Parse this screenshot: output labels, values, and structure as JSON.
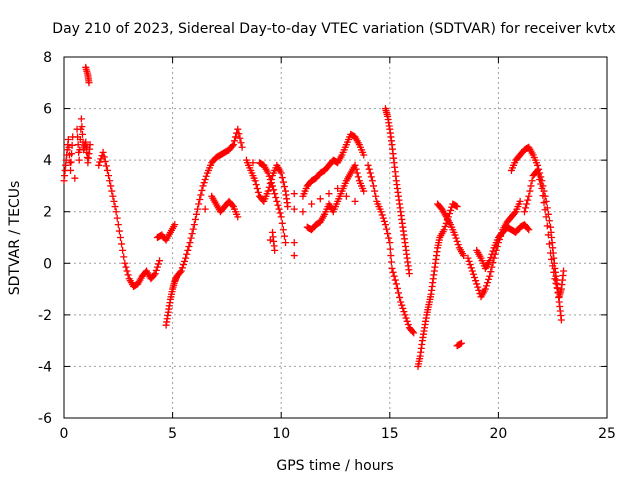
{
  "chart_data": {
    "type": "scatter",
    "title": "Day 210 of 2023, Sidereal Day-to-day VTEC variation (SDTVAR) for receiver kvtx",
    "xlabel": "GPS time / hours",
    "ylabel": "SDTVAR / TECUs",
    "xlim": [
      0,
      25
    ],
    "ylim": [
      -6,
      8
    ],
    "xticks": [
      0,
      5,
      10,
      15,
      20,
      25
    ],
    "yticks": [
      -6,
      -4,
      -2,
      0,
      2,
      4,
      6,
      8
    ],
    "grid": true,
    "marker": "+",
    "color": "#ff0000",
    "series": [
      {
        "name": "kvtx",
        "points": [
          [
            0.0,
            3.2
          ],
          [
            0.1,
            4.0
          ],
          [
            0.2,
            4.8
          ],
          [
            0.3,
            3.6
          ],
          [
            0.4,
            4.9
          ],
          [
            0.5,
            3.3
          ],
          [
            0.6,
            5.2
          ],
          [
            0.7,
            4.0
          ],
          [
            0.8,
            5.6
          ],
          [
            0.9,
            4.4
          ],
          [
            1.0,
            4.7
          ],
          [
            1.1,
            3.9
          ],
          [
            1.2,
            4.6
          ],
          [
            1.0,
            7.6
          ],
          [
            1.1,
            7.3
          ],
          [
            1.15,
            7.0
          ],
          [
            1.6,
            3.8
          ],
          [
            1.8,
            4.3
          ],
          [
            2.0,
            3.6
          ],
          [
            2.2,
            2.8
          ],
          [
            2.4,
            2.0
          ],
          [
            2.6,
            1.0
          ],
          [
            2.8,
            0.0
          ],
          [
            3.0,
            -0.6
          ],
          [
            3.2,
            -0.9
          ],
          [
            3.4,
            -0.8
          ],
          [
            3.6,
            -0.5
          ],
          [
            3.8,
            -0.3
          ],
          [
            4.0,
            -0.6
          ],
          [
            4.2,
            -0.4
          ],
          [
            4.4,
            0.1
          ],
          [
            4.3,
            1.0
          ],
          [
            4.5,
            1.1
          ],
          [
            4.7,
            0.9
          ],
          [
            4.9,
            1.2
          ],
          [
            5.1,
            1.5
          ],
          [
            4.7,
            -2.4
          ],
          [
            4.8,
            -1.9
          ],
          [
            4.9,
            -1.4
          ],
          [
            5.0,
            -1.0
          ],
          [
            5.1,
            -0.7
          ],
          [
            5.2,
            -0.5
          ],
          [
            5.4,
            -0.3
          ],
          [
            5.6,
            0.2
          ],
          [
            5.8,
            0.8
          ],
          [
            6.0,
            1.5
          ],
          [
            6.2,
            2.3
          ],
          [
            6.4,
            3.0
          ],
          [
            6.6,
            3.5
          ],
          [
            6.8,
            3.9
          ],
          [
            7.0,
            4.1
          ],
          [
            7.2,
            4.2
          ],
          [
            7.4,
            4.3
          ],
          [
            7.6,
            4.4
          ],
          [
            7.8,
            4.6
          ],
          [
            8.0,
            5.2
          ],
          [
            8.2,
            4.5
          ],
          [
            6.5,
            2.1
          ],
          [
            6.8,
            2.6
          ],
          [
            7.0,
            2.3
          ],
          [
            7.2,
            2.0
          ],
          [
            7.4,
            2.2
          ],
          [
            7.6,
            2.4
          ],
          [
            7.8,
            2.2
          ],
          [
            8.0,
            1.8
          ],
          [
            8.4,
            4.0
          ],
          [
            8.6,
            3.6
          ],
          [
            8.8,
            3.2
          ],
          [
            9.0,
            2.6
          ],
          [
            9.2,
            2.4
          ],
          [
            9.4,
            2.8
          ],
          [
            9.6,
            3.4
          ],
          [
            9.8,
            3.8
          ],
          [
            10.0,
            3.5
          ],
          [
            10.2,
            2.8
          ],
          [
            10.3,
            2.2
          ],
          [
            8.7,
            3.9
          ],
          [
            9.0,
            3.9
          ],
          [
            9.2,
            3.8
          ],
          [
            9.4,
            3.5
          ],
          [
            9.6,
            3.0
          ],
          [
            9.8,
            2.4
          ],
          [
            10.0,
            1.8
          ],
          [
            10.2,
            0.8
          ],
          [
            9.6,
            1.2
          ],
          [
            9.7,
            0.5
          ],
          [
            9.5,
            0.9
          ],
          [
            10.6,
            2.7
          ],
          [
            10.6,
            2.1
          ],
          [
            10.6,
            0.8
          ],
          [
            10.6,
            0.3
          ],
          [
            11.0,
            2.6
          ],
          [
            11.2,
            3.0
          ],
          [
            11.4,
            3.2
          ],
          [
            11.6,
            3.3
          ],
          [
            11.8,
            3.5
          ],
          [
            12.0,
            3.6
          ],
          [
            12.2,
            3.8
          ],
          [
            12.4,
            4.0
          ],
          [
            12.6,
            3.9
          ],
          [
            12.8,
            4.2
          ],
          [
            13.0,
            4.6
          ],
          [
            13.2,
            5.0
          ],
          [
            13.4,
            4.9
          ],
          [
            13.6,
            4.6
          ],
          [
            13.8,
            4.2
          ],
          [
            11.2,
            1.4
          ],
          [
            11.4,
            1.3
          ],
          [
            11.6,
            1.5
          ],
          [
            11.8,
            1.6
          ],
          [
            12.0,
            1.9
          ],
          [
            12.2,
            2.3
          ],
          [
            12.4,
            2.0
          ],
          [
            12.6,
            2.4
          ],
          [
            12.8,
            2.8
          ],
          [
            13.0,
            3.2
          ],
          [
            13.2,
            3.5
          ],
          [
            13.4,
            3.8
          ],
          [
            13.6,
            3.2
          ],
          [
            13.8,
            2.8
          ],
          [
            11.0,
            2.0
          ],
          [
            11.4,
            2.3
          ],
          [
            11.8,
            2.5
          ],
          [
            12.2,
            2.7
          ],
          [
            12.6,
            2.9
          ],
          [
            13.0,
            2.6
          ],
          [
            13.4,
            2.4
          ],
          [
            14.0,
            3.8
          ],
          [
            14.2,
            3.2
          ],
          [
            14.4,
            2.4
          ],
          [
            14.6,
            2.0
          ],
          [
            14.8,
            1.5
          ],
          [
            15.0,
            0.8
          ],
          [
            15.1,
            -0.2
          ],
          [
            15.3,
            -0.8
          ],
          [
            15.5,
            -1.5
          ],
          [
            15.7,
            -2.0
          ],
          [
            15.9,
            -2.5
          ],
          [
            16.1,
            -2.7
          ],
          [
            14.8,
            6.0
          ],
          [
            14.9,
            5.7
          ],
          [
            15.0,
            5.2
          ],
          [
            15.1,
            4.6
          ],
          [
            15.2,
            3.9
          ],
          [
            15.3,
            3.2
          ],
          [
            15.4,
            2.6
          ],
          [
            15.5,
            2.0
          ],
          [
            15.6,
            1.4
          ],
          [
            15.7,
            0.8
          ],
          [
            15.8,
            0.2
          ],
          [
            15.9,
            -0.4
          ],
          [
            16.3,
            -4.0
          ],
          [
            16.4,
            -3.6
          ],
          [
            16.5,
            -3.0
          ],
          [
            16.6,
            -2.5
          ],
          [
            16.7,
            -2.0
          ],
          [
            16.8,
            -1.6
          ],
          [
            16.9,
            -1.2
          ],
          [
            17.0,
            -0.6
          ],
          [
            17.1,
            0.0
          ],
          [
            17.2,
            0.6
          ],
          [
            17.3,
            1.0
          ],
          [
            17.5,
            1.3
          ],
          [
            17.7,
            1.8
          ],
          [
            17.9,
            2.3
          ],
          [
            18.1,
            2.2
          ],
          [
            17.2,
            2.3
          ],
          [
            17.4,
            2.1
          ],
          [
            17.6,
            1.8
          ],
          [
            17.8,
            1.5
          ],
          [
            18.0,
            1.1
          ],
          [
            18.2,
            0.6
          ],
          [
            18.4,
            0.3
          ],
          [
            18.1,
            -3.2
          ],
          [
            18.3,
            -3.1
          ],
          [
            18.6,
            0.2
          ],
          [
            18.8,
            -0.3
          ],
          [
            19.0,
            -0.8
          ],
          [
            19.2,
            -1.3
          ],
          [
            19.4,
            -1.0
          ],
          [
            19.6,
            -0.5
          ],
          [
            19.8,
            0.2
          ],
          [
            20.0,
            0.8
          ],
          [
            20.2,
            1.3
          ],
          [
            20.4,
            1.6
          ],
          [
            20.6,
            1.8
          ],
          [
            20.8,
            2.0
          ],
          [
            21.0,
            2.4
          ],
          [
            19.0,
            0.5
          ],
          [
            19.2,
            0.2
          ],
          [
            19.4,
            -0.2
          ],
          [
            19.6,
            0.1
          ],
          [
            19.8,
            0.6
          ],
          [
            20.0,
            1.0
          ],
          [
            20.2,
            1.2
          ],
          [
            20.4,
            1.4
          ],
          [
            20.6,
            1.3
          ],
          [
            20.8,
            1.2
          ],
          [
            21.0,
            1.4
          ],
          [
            21.2,
            1.5
          ],
          [
            21.4,
            1.3
          ],
          [
            20.6,
            3.6
          ],
          [
            20.8,
            4.0
          ],
          [
            21.0,
            4.2
          ],
          [
            21.2,
            4.4
          ],
          [
            21.4,
            4.5
          ],
          [
            21.6,
            4.2
          ],
          [
            21.8,
            3.8
          ],
          [
            22.0,
            3.2
          ],
          [
            22.2,
            2.4
          ],
          [
            22.4,
            1.4
          ],
          [
            22.5,
            0.6
          ],
          [
            22.6,
            -0.2
          ],
          [
            22.7,
            -0.8
          ],
          [
            22.8,
            -1.5
          ],
          [
            22.9,
            -2.2
          ],
          [
            21.2,
            2.0
          ],
          [
            21.4,
            2.6
          ],
          [
            21.6,
            3.4
          ],
          [
            21.8,
            3.6
          ],
          [
            22.0,
            2.9
          ],
          [
            22.2,
            1.8
          ],
          [
            22.4,
            0.4
          ],
          [
            22.6,
            -0.6
          ],
          [
            22.8,
            -1.3
          ],
          [
            22.9,
            -1.0
          ],
          [
            23.0,
            -0.3
          ]
        ]
      }
    ]
  }
}
